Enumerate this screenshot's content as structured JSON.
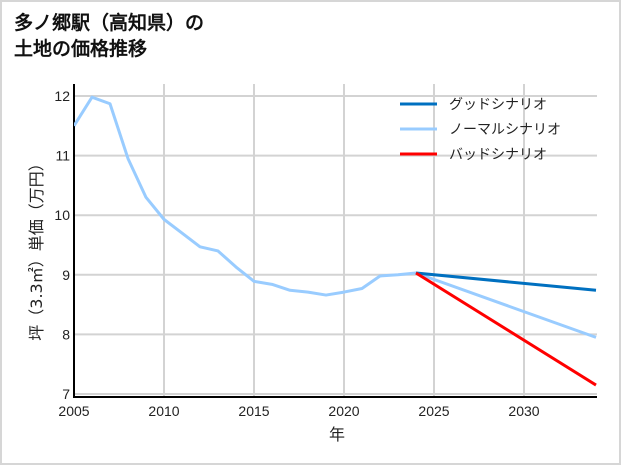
{
  "title_line1": "多ノ郷駅（高知県）の",
  "title_line2": "土地の価格推移",
  "chart_data": {
    "type": "line",
    "title": "多ノ郷駅（高知県）の土地の価格推移",
    "xlabel": "年",
    "ylabel": "坪（3.3㎡）単価（万円）",
    "xlim": [
      2005,
      2034
    ],
    "ylim": [
      7,
      12
    ],
    "xticks": [
      2005,
      2010,
      2015,
      2020,
      2025,
      2030
    ],
    "yticks": [
      7,
      8,
      9,
      10,
      11,
      12
    ],
    "grid": true,
    "legend_position": "upper right",
    "series": [
      {
        "name": "ノーマルシナリオ",
        "color": "#99ccff",
        "x": [
          2005,
          2006,
          2007,
          2008,
          2009,
          2010,
          2011,
          2012,
          2013,
          2014,
          2015,
          2016,
          2017,
          2018,
          2019,
          2020,
          2021,
          2022,
          2023,
          2024,
          2034
        ],
        "values": [
          11.5,
          11.98,
          11.87,
          10.95,
          10.3,
          9.93,
          9.7,
          9.47,
          9.4,
          9.13,
          8.89,
          8.84,
          8.74,
          8.71,
          8.66,
          8.71,
          8.77,
          8.98,
          9.0,
          9.03,
          7.95
        ]
      },
      {
        "name": "グッドシナリオ",
        "color": "#0070c0",
        "x": [
          2024,
          2034
        ],
        "values": [
          9.03,
          8.74
        ]
      },
      {
        "name": "バッドシナリオ",
        "color": "#ff0000",
        "x": [
          2024,
          2034
        ],
        "values": [
          9.03,
          7.15
        ]
      }
    ],
    "legend": [
      "グッドシナリオ",
      "ノーマルシナリオ",
      "バッドシナリオ"
    ]
  }
}
